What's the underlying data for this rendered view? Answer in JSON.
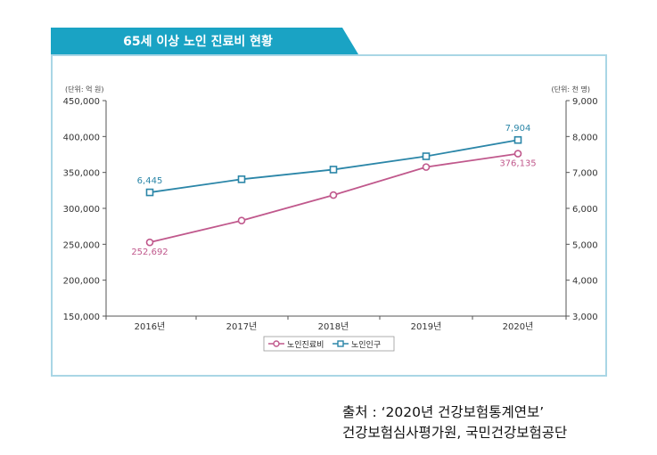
{
  "header": {
    "title": "65세 이상 노인 진료비 현황"
  },
  "chart_data": {
    "type": "line",
    "title": "65세 이상 노인 진료비 현황",
    "categories": [
      "2016년",
      "2017년",
      "2018년",
      "2019년",
      "2020년"
    ],
    "left_axis": {
      "unit_label": "(단위: 억 원)",
      "range": [
        150000,
        450000
      ],
      "ticks": [
        "150,000",
        "200,000",
        "250,000",
        "300,000",
        "350,000",
        "400,000",
        "450,000"
      ]
    },
    "right_axis": {
      "unit_label": "(단위: 천 명)",
      "range": [
        3000,
        9000
      ],
      "ticks": [
        "3,000",
        "4,000",
        "5,000",
        "6,000",
        "7,000",
        "8,000",
        "9,000"
      ]
    },
    "series": [
      {
        "name": "노인진료비",
        "axis": "left",
        "color": "#c0588c",
        "marker": "circle",
        "values": [
          252692,
          283000,
          318500,
          357500,
          376135
        ],
        "data_labels": {
          "0": "252,692",
          "4": "376,135"
        }
      },
      {
        "name": "노인인구",
        "axis": "right",
        "color": "#2b86a8",
        "marker": "square",
        "values": [
          6445,
          6810,
          7080,
          7450,
          7904
        ],
        "data_labels": {
          "0": "6,445",
          "4": "7,904"
        }
      }
    ],
    "legend_position": "bottom-center",
    "grid": false
  },
  "source": {
    "line1": "출처 : ‘2020년 건강보험통계연보’",
    "line2": "건강보험심사평가원, 국민건강보험공단"
  },
  "colors": {
    "header_bg": "#1aa3c4",
    "frame_border": "#a9d6e5",
    "axis": "#555555"
  }
}
